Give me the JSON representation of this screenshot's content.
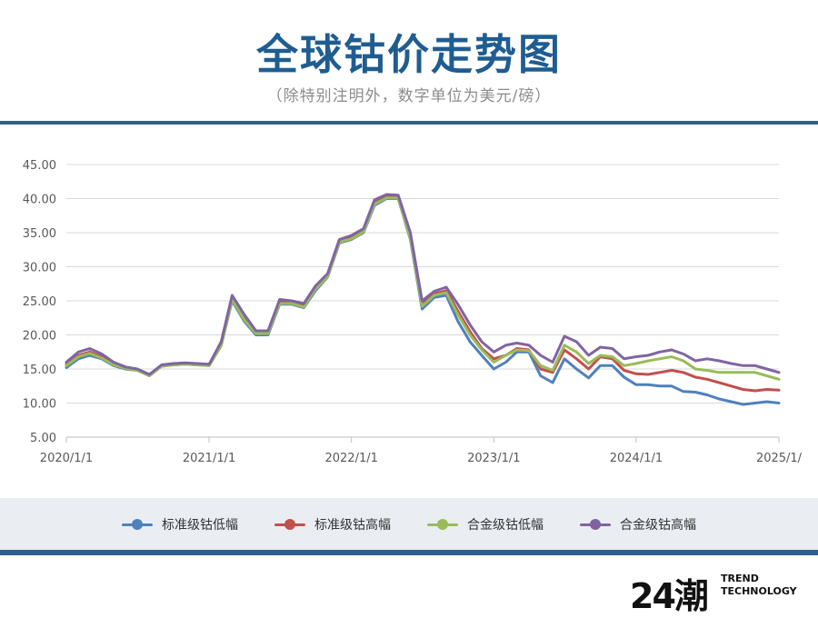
{
  "header": {
    "title": "全球钴价走势图",
    "subtitle": "（除特别注明外，数字单位为美元/磅）"
  },
  "logo": {
    "mark": "24潮",
    "line1": "TREND",
    "line2": "TECHNOLOGY"
  },
  "chart_data": {
    "type": "line",
    "x_type": "date",
    "xlim": [
      "2020-01-01",
      "2025-01-01"
    ],
    "xticks": [
      "2020/1/1",
      "2021/1/1",
      "2022/1/1",
      "2023/1/1",
      "2024/1/1",
      "2025/1/"
    ],
    "ylim": [
      5,
      45
    ],
    "yticks": [
      "5.00",
      "10.00",
      "15.00",
      "20.00",
      "25.00",
      "30.00",
      "35.00",
      "40.00",
      "45.00"
    ],
    "grid": "horizontal",
    "legend_position": "bottom",
    "x": [
      "2020-01-01",
      "2020-02-01",
      "2020-03-01",
      "2020-04-01",
      "2020-05-01",
      "2020-06-01",
      "2020-07-01",
      "2020-08-01",
      "2020-09-01",
      "2020-10-01",
      "2020-11-01",
      "2020-12-01",
      "2021-01-01",
      "2021-02-01",
      "2021-03-01",
      "2021-04-01",
      "2021-05-01",
      "2021-06-01",
      "2021-07-01",
      "2021-08-01",
      "2021-09-01",
      "2021-10-01",
      "2021-11-01",
      "2021-12-01",
      "2022-01-01",
      "2022-02-01",
      "2022-03-01",
      "2022-04-01",
      "2022-05-01",
      "2022-06-01",
      "2022-07-01",
      "2022-08-01",
      "2022-09-01",
      "2022-10-01",
      "2022-11-01",
      "2022-12-01",
      "2023-01-01",
      "2023-02-01",
      "2023-03-01",
      "2023-04-01",
      "2023-05-01",
      "2023-06-01",
      "2023-07-01",
      "2023-08-01",
      "2023-09-01",
      "2023-10-01",
      "2023-11-01",
      "2023-12-01",
      "2024-01-01",
      "2024-02-01",
      "2024-03-01",
      "2024-04-01",
      "2024-05-01",
      "2024-06-01",
      "2024-07-01",
      "2024-08-01",
      "2024-09-01",
      "2024-10-01",
      "2024-11-01",
      "2024-12-01",
      "2025-01-01"
    ],
    "series": [
      {
        "name": "标准级钴低幅",
        "color": "#4f81bd",
        "values": [
          15.2,
          16.5,
          17.0,
          16.5,
          15.5,
          15.0,
          14.8,
          14.0,
          15.4,
          15.6,
          15.7,
          15.6,
          15.5,
          18.5,
          25.0,
          22.0,
          20.0,
          20.0,
          24.5,
          24.5,
          24.0,
          26.5,
          28.5,
          33.5,
          34.0,
          35.0,
          39.0,
          40.0,
          40.0,
          34.0,
          23.8,
          25.5,
          25.8,
          22.0,
          19.0,
          17.0,
          15.0,
          16.0,
          17.5,
          17.5,
          14.0,
          13.0,
          16.5,
          15.0,
          13.7,
          15.5,
          15.5,
          13.8,
          12.7,
          12.7,
          12.5,
          12.5,
          11.7,
          11.6,
          11.2,
          10.6,
          10.2,
          9.8,
          10.0,
          10.2,
          10.0
        ]
      },
      {
        "name": "标准级钴高幅",
        "color": "#c0504d",
        "values": [
          15.7,
          17.0,
          17.5,
          16.8,
          15.7,
          15.2,
          14.9,
          14.1,
          15.5,
          15.7,
          15.8,
          15.7,
          15.6,
          18.8,
          25.5,
          22.5,
          20.3,
          20.3,
          24.9,
          24.8,
          24.3,
          26.9,
          28.8,
          33.8,
          34.3,
          35.3,
          39.5,
          40.4,
          40.3,
          34.6,
          24.6,
          26.0,
          26.5,
          23.5,
          20.5,
          18.0,
          16.5,
          17.0,
          18.0,
          17.8,
          15.0,
          14.5,
          17.8,
          16.5,
          15.0,
          16.8,
          16.5,
          14.8,
          14.3,
          14.2,
          14.5,
          14.8,
          14.5,
          13.8,
          13.5,
          13.0,
          12.5,
          12.0,
          11.8,
          12.0,
          11.9
        ]
      },
      {
        "name": "合金级钴低幅",
        "color": "#9bbb59",
        "values": [
          15.5,
          16.8,
          17.3,
          16.6,
          15.6,
          15.1,
          14.8,
          14.0,
          15.4,
          15.6,
          15.7,
          15.6,
          15.5,
          18.4,
          25.2,
          22.2,
          20.2,
          20.2,
          24.6,
          24.6,
          24.1,
          26.7,
          28.6,
          33.6,
          34.1,
          35.1,
          39.2,
          40.1,
          40.1,
          34.2,
          24.2,
          25.8,
          26.2,
          23.0,
          20.0,
          17.8,
          16.0,
          17.0,
          17.8,
          17.7,
          15.5,
          14.8,
          18.5,
          17.5,
          15.8,
          17.0,
          16.8,
          15.5,
          15.8,
          16.2,
          16.5,
          16.8,
          16.2,
          15.0,
          14.8,
          14.5,
          14.5,
          14.5,
          14.5,
          14.0,
          13.5
        ]
      },
      {
        "name": "合金级钴高幅",
        "color": "#8064a2",
        "values": [
          16.0,
          17.5,
          18.0,
          17.2,
          16.0,
          15.3,
          15.0,
          14.2,
          15.6,
          15.8,
          15.9,
          15.8,
          15.7,
          19.0,
          25.8,
          23.0,
          20.6,
          20.6,
          25.2,
          25.0,
          24.6,
          27.2,
          29.0,
          34.0,
          34.6,
          35.6,
          39.8,
          40.6,
          40.5,
          35.0,
          25.0,
          26.4,
          27.0,
          24.5,
          21.5,
          19.0,
          17.5,
          18.5,
          18.8,
          18.5,
          17.0,
          16.0,
          19.8,
          19.0,
          17.0,
          18.2,
          18.0,
          16.5,
          16.8,
          17.0,
          17.5,
          17.8,
          17.2,
          16.2,
          16.5,
          16.2,
          15.8,
          15.5,
          15.5,
          15.0,
          14.5
        ]
      }
    ]
  }
}
